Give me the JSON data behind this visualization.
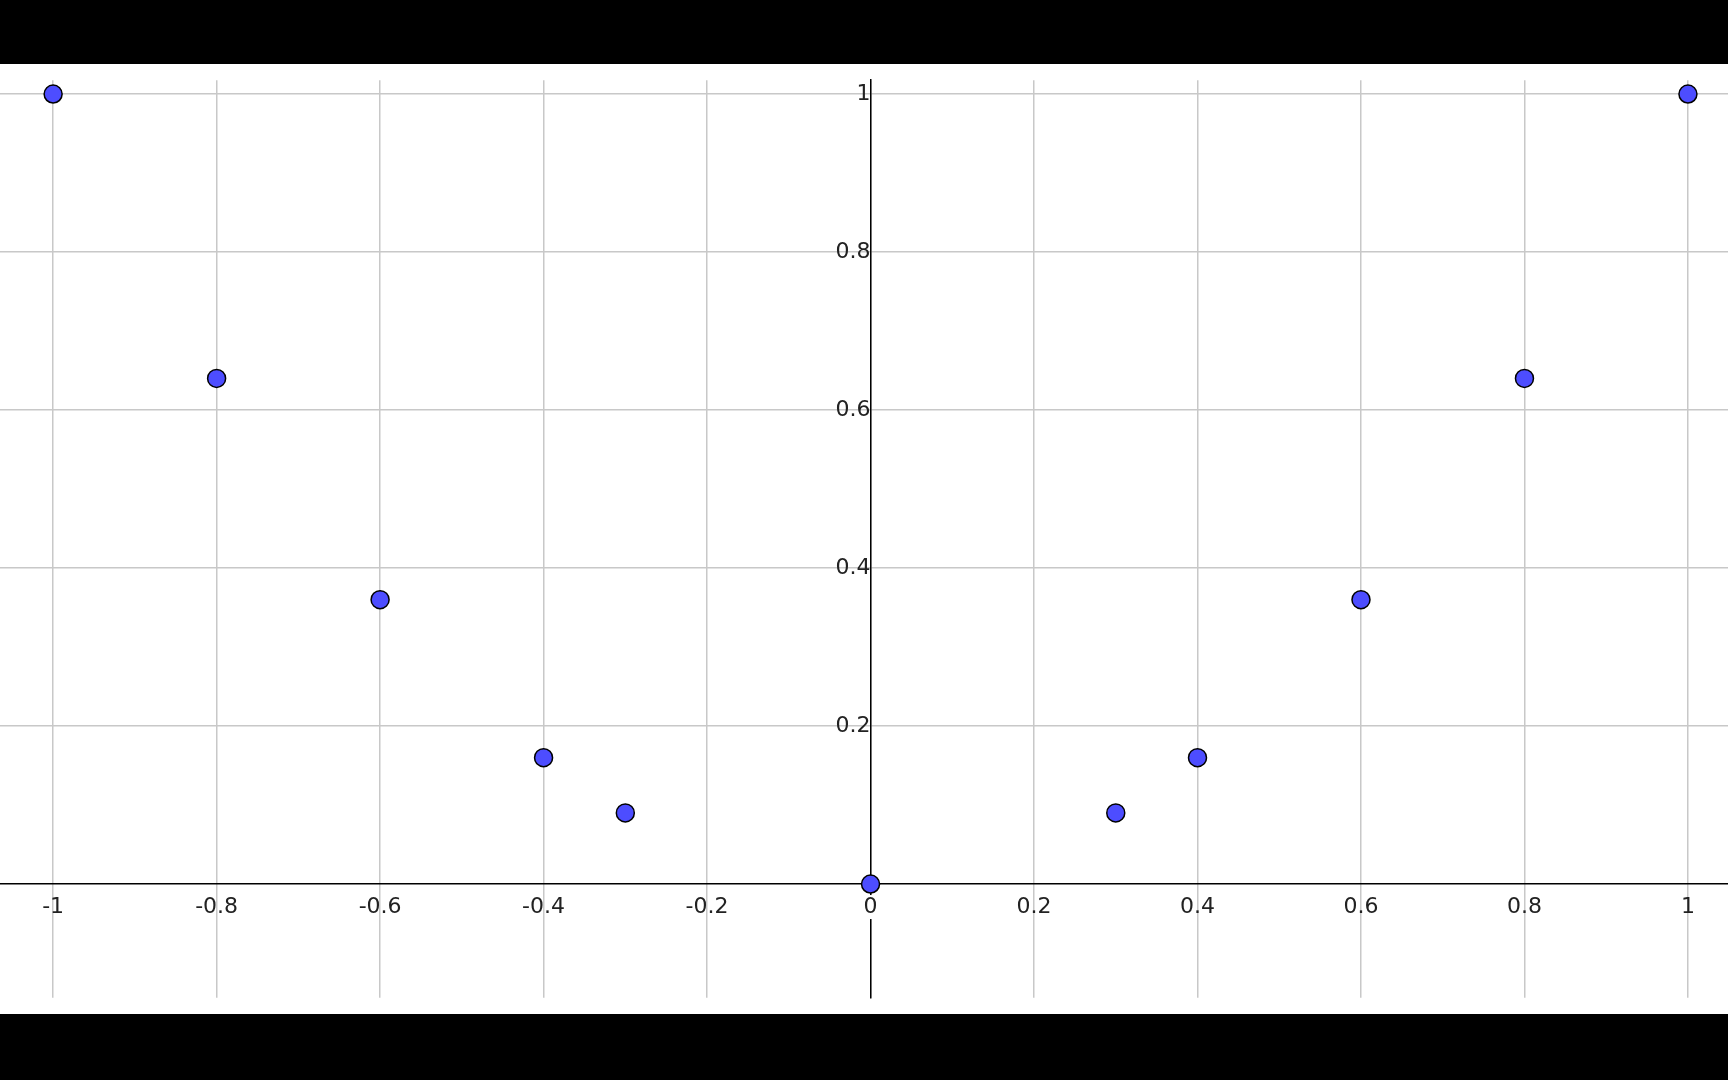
{
  "chart_data": {
    "type": "scatter",
    "x": [
      -1,
      -0.8,
      -0.6,
      -0.4,
      -0.3,
      0,
      0.3,
      0.4,
      0.6,
      0.8,
      1
    ],
    "series": [
      {
        "color": "#4d4dff",
        "values": [
          1,
          0.64,
          0.36,
          0.16,
          0.09,
          0,
          0.09,
          0.16,
          0.36,
          0.64,
          1
        ]
      }
    ],
    "xlim": [
      -1.065,
      1.049
    ],
    "ylim": [
      -0.144,
      1.0175
    ],
    "xticks": [
      -1,
      -0.8,
      -0.6,
      -0.4,
      -0.2,
      0,
      0.2,
      0.4,
      0.6,
      0.8,
      1
    ],
    "yticks": [
      0.2,
      0.4,
      0.6,
      0.8,
      1
    ],
    "grid": true,
    "marker": "circle",
    "legend": false
  }
}
